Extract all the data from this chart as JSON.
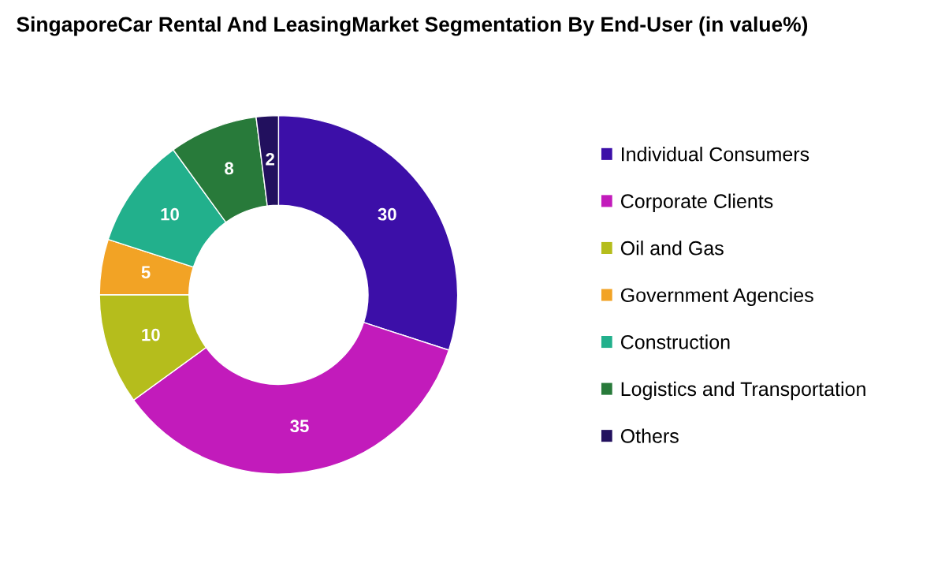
{
  "chart_data": {
    "type": "donut",
    "title": "SingaporeCar Rental And LeasingMarket Segmentation By End-User (in value%)",
    "categories": [
      "Individual Consumers",
      "Corporate Clients",
      "Oil and Gas",
      "Government Agencies",
      "Construction",
      "Logistics and Transportation",
      "Others"
    ],
    "values": [
      30,
      35,
      10,
      5,
      10,
      8,
      2
    ],
    "colors": [
      "#3c0fa8",
      "#c21bbb",
      "#b5bd1c",
      "#f2a325",
      "#22b08c",
      "#287a3a",
      "#22105e"
    ],
    "data_labels": true,
    "legend": "right"
  }
}
